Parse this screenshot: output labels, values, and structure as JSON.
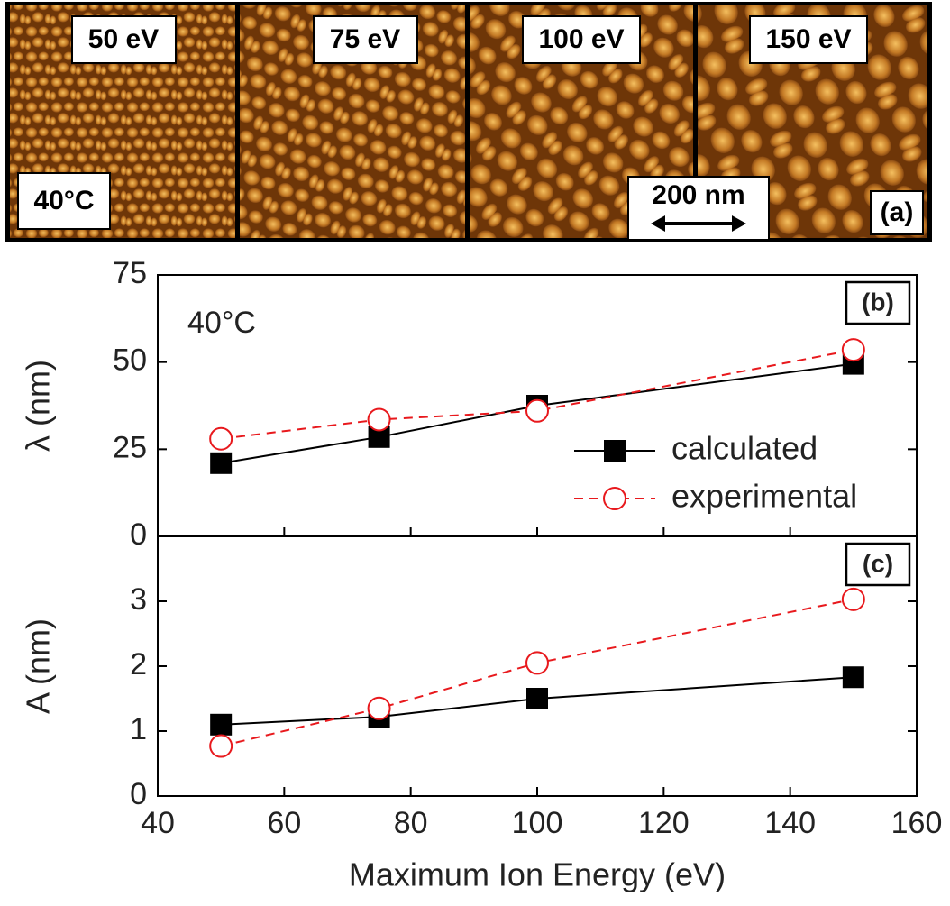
{
  "afm_panel": {
    "images": [
      "50 eV",
      "75 eV",
      "100 eV",
      "150 eV"
    ],
    "temperature": "40°C",
    "scale_bar": "200 nm",
    "panel_label": "(a)"
  },
  "chart_data": [
    {
      "type": "line",
      "panel_label": "(b)",
      "annotation": "40°C",
      "ylabel": "λ (nm)",
      "x": [
        50,
        75,
        100,
        150
      ],
      "series": [
        {
          "name": "calculated",
          "color": "#000000",
          "marker": "square",
          "line_style": "solid",
          "values": [
            21,
            28.5,
            37.5,
            49.5
          ]
        },
        {
          "name": "experimental",
          "color": "#e8191d",
          "marker": "circle-open",
          "line_style": "dashed",
          "values": [
            28,
            33.5,
            36,
            53.5
          ]
        }
      ],
      "xlim": [
        40,
        160
      ],
      "xticks": [
        40,
        60,
        80,
        100,
        120,
        140,
        160
      ],
      "ylim": [
        0,
        75
      ],
      "yticks": [
        0,
        25,
        50,
        75
      ],
      "legend": "lower right"
    },
    {
      "type": "line",
      "panel_label": "(c)",
      "ylabel": "A (nm)",
      "xlabel": "Maximum Ion Energy (eV)",
      "x": [
        50,
        75,
        100,
        150
      ],
      "series": [
        {
          "name": "calculated",
          "color": "#000000",
          "marker": "square",
          "line_style": "solid",
          "values": [
            1.1,
            1.22,
            1.5,
            1.83
          ]
        },
        {
          "name": "experimental",
          "color": "#e8191d",
          "marker": "circle-open",
          "line_style": "dashed",
          "values": [
            0.77,
            1.35,
            2.05,
            3.03
          ]
        }
      ],
      "xlim": [
        40,
        160
      ],
      "xticks": [
        40,
        60,
        80,
        100,
        120,
        140,
        160
      ],
      "ylim": [
        0,
        4
      ],
      "yticks": [
        0,
        1,
        2,
        3
      ]
    }
  ]
}
